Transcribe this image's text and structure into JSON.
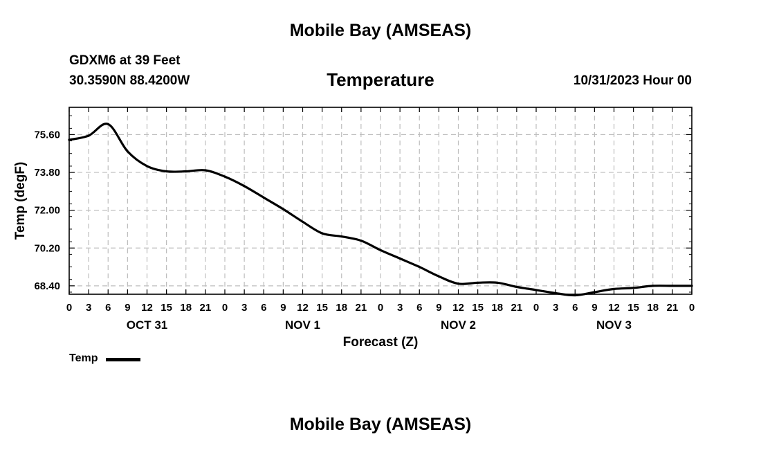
{
  "header": {
    "title": "Mobile Bay (AMSEAS)",
    "station": "GDXM6 at 39 Feet",
    "coords": "30.3590N  88.4200W",
    "variable": "Temperature",
    "datetime": "10/31/2023 Hour 00"
  },
  "footer": {
    "title": "Mobile Bay (AMSEAS)"
  },
  "chart_data": {
    "type": "line",
    "xlabel": "Forecast (Z)",
    "ylabel": "Temp (degF)",
    "ylim": [
      68.0,
      76.9
    ],
    "xlim": [
      0,
      96
    ],
    "grid": true,
    "y_ticks": [
      "68.40",
      "70.20",
      "72.00",
      "73.80",
      "75.60"
    ],
    "y_tick_values": [
      68.4,
      70.2,
      72.0,
      73.8,
      75.6
    ],
    "x_ticks": [
      "0",
      "3",
      "6",
      "9",
      "12",
      "15",
      "18",
      "21",
      "0",
      "3",
      "6",
      "9",
      "12",
      "15",
      "18",
      "21",
      "0",
      "3",
      "6",
      "9",
      "12",
      "15",
      "18",
      "21",
      "0",
      "3",
      "6",
      "9",
      "12",
      "15",
      "18",
      "21",
      "0"
    ],
    "day_labels": [
      {
        "label": "OCT 31",
        "hour": 12
      },
      {
        "label": "NOV 1",
        "hour": 36
      },
      {
        "label": "NOV 2",
        "hour": 60
      },
      {
        "label": "NOV 3",
        "hour": 84
      }
    ],
    "series": [
      {
        "name": "Temp",
        "color": "#000000",
        "x": [
          0,
          3,
          6,
          9,
          12,
          15,
          18,
          21,
          24,
          27,
          30,
          33,
          36,
          39,
          42,
          45,
          48,
          51,
          54,
          57,
          60,
          63,
          66,
          69,
          72,
          75,
          78,
          81,
          84,
          87,
          90,
          93,
          96
        ],
        "values": [
          75.35,
          75.55,
          76.1,
          74.8,
          74.1,
          73.85,
          73.85,
          73.9,
          73.6,
          73.15,
          72.6,
          72.05,
          71.45,
          70.9,
          70.75,
          70.55,
          70.1,
          69.7,
          69.3,
          68.85,
          68.5,
          68.55,
          68.55,
          68.35,
          68.2,
          68.05,
          67.95,
          68.1,
          68.25,
          68.3,
          68.4,
          68.4,
          68.4
        ]
      }
    ]
  },
  "legend": {
    "label": "Temp",
    "color": "#000000"
  }
}
